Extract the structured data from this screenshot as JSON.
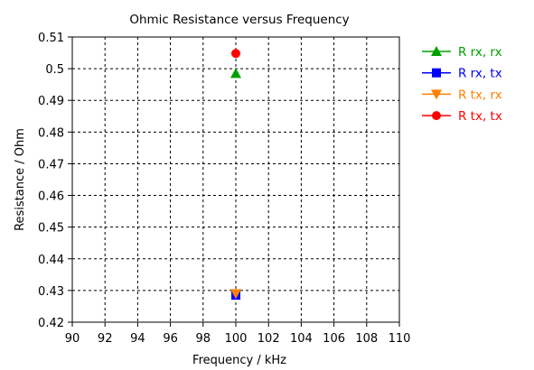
{
  "chart_data": {
    "type": "scatter",
    "title": "Ohmic Resistance versus Frequency",
    "xlabel": "Frequency / kHz",
    "ylabel": "Resistance / Ohm",
    "xlim": [
      90,
      110
    ],
    "ylim": [
      0.42,
      0.51
    ],
    "xticks": [
      "90",
      "92",
      "94",
      "96",
      "98",
      "100",
      "102",
      "104",
      "106",
      "108",
      "110"
    ],
    "yticks": [
      "0.42",
      "0.43",
      "0.44",
      "0.45",
      "0.46",
      "0.47",
      "0.48",
      "0.49",
      "0.5",
      "0.51"
    ],
    "grid": true,
    "legend_position": "right",
    "series": [
      {
        "name": "R rx, rx",
        "color": "#00a000",
        "marker": "triangle-up",
        "x": [
          100
        ],
        "y": [
          0.4985
        ]
      },
      {
        "name": "R rx, tx",
        "color": "#0000ff",
        "marker": "square",
        "x": [
          100
        ],
        "y": [
          0.4285
        ]
      },
      {
        "name": "R tx, rx",
        "color": "#ff8000",
        "marker": "triangle-down",
        "x": [
          100
        ],
        "y": [
          0.429
        ]
      },
      {
        "name": "R tx, tx",
        "color": "#ff0000",
        "marker": "circle",
        "x": [
          100
        ],
        "y": [
          0.5048
        ]
      }
    ]
  }
}
